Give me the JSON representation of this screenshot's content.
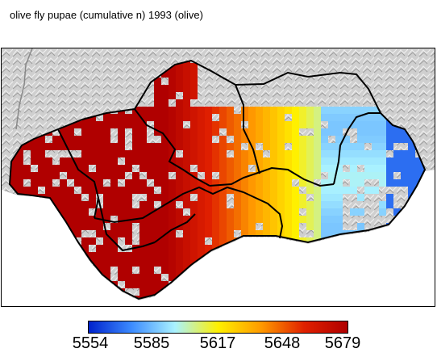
{
  "title": "olive fly pupae (cumulative n) 1993 (olive)",
  "legend": {
    "gradient_colors": [
      "#0022cc",
      "#3d8cff",
      "#aaf2ff",
      "#fff000",
      "#ff9a00",
      "#e02000",
      "#b00000"
    ],
    "ticks": [
      "5554",
      "5585",
      "5617",
      "5648",
      "5679"
    ]
  },
  "map": {
    "land_color": "#d4d4d4",
    "sea_color": "#ffffff",
    "border_color": "#000000"
  }
}
